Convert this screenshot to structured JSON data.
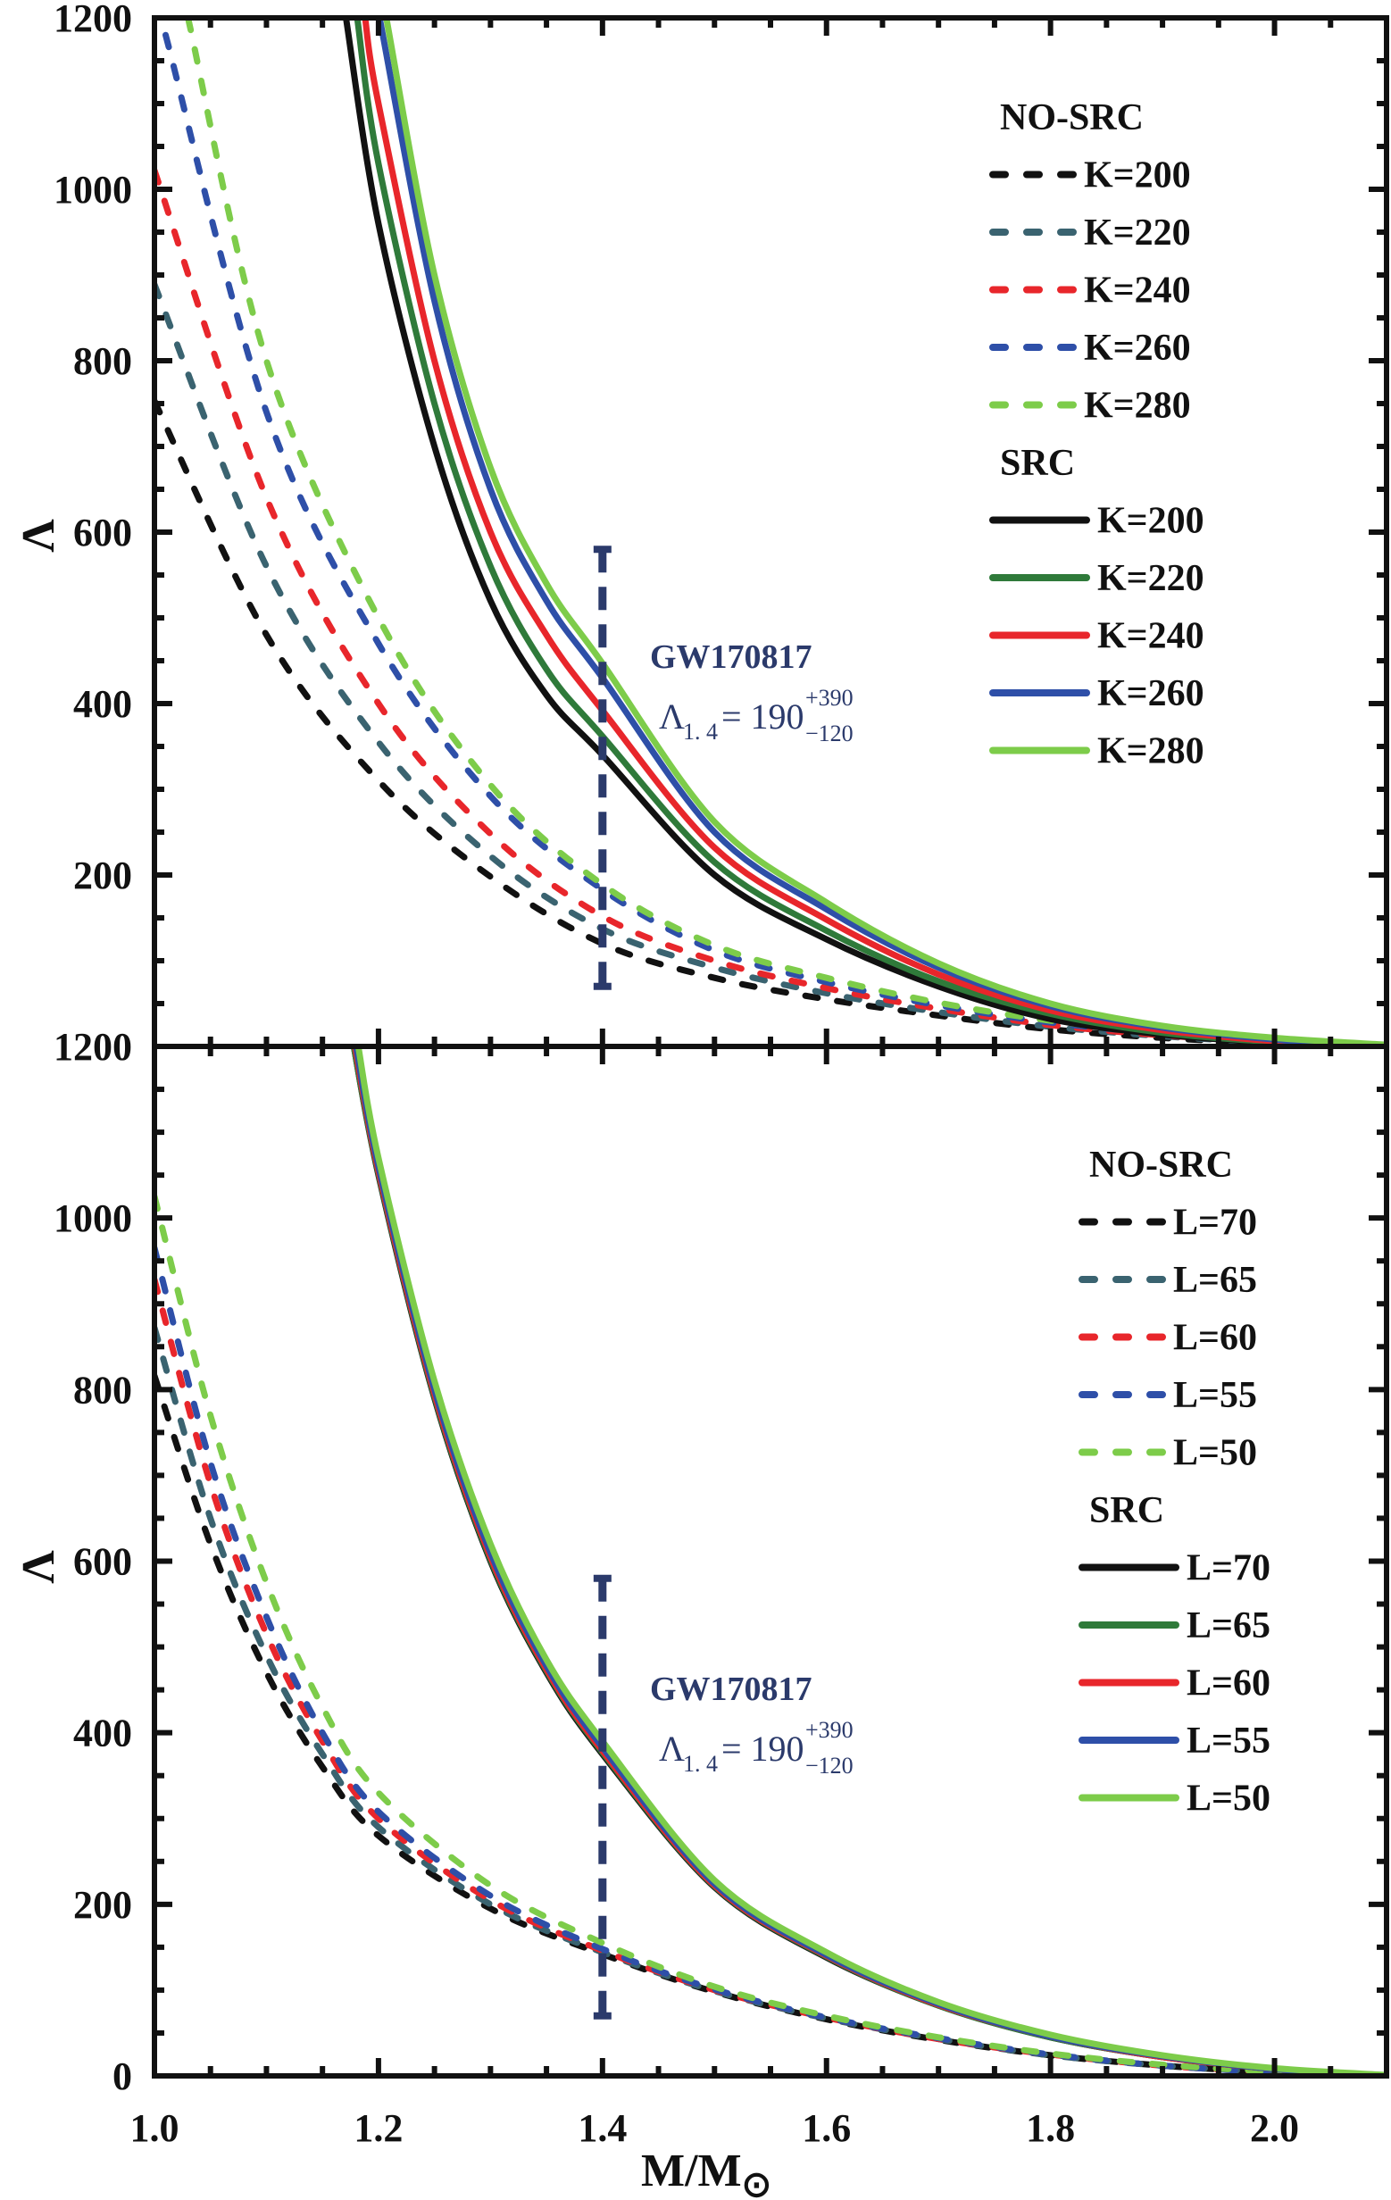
{
  "chart_data": [
    {
      "type": "line",
      "panel": "top",
      "title": "",
      "xlabel": "M/M⊙",
      "ylabel": "Λ",
      "xlim": [
        1.0,
        2.1
      ],
      "ylim": [
        0,
        1200
      ],
      "xticks": [
        1.0,
        1.2,
        1.4,
        1.6,
        1.8,
        2.0
      ],
      "yticks": [
        200,
        400,
        600,
        800,
        1000,
        1200
      ],
      "ytick_labels": [
        "200",
        "400",
        "600",
        "800",
        "1000",
        "1200"
      ],
      "grid": false,
      "legend_placement": "top-right",
      "legend_groups": [
        {
          "title": "NO-SRC",
          "style": "dashed",
          "series_ids": [
            0,
            1,
            2,
            3,
            4
          ]
        },
        {
          "title": "SRC",
          "style": "solid",
          "series_ids": [
            5,
            6,
            7,
            8,
            9
          ]
        }
      ],
      "series": [
        {
          "name": "K=200",
          "group": "NO-SRC",
          "style": "dashed",
          "color": "#111111",
          "x": [
            1.0,
            1.1,
            1.2,
            1.3,
            1.4,
            1.5,
            1.6,
            1.7,
            1.8,
            1.9,
            2.0,
            2.06
          ],
          "y": [
            753,
            480,
            310,
            198,
            120,
            80,
            55,
            36,
            20,
            10,
            3,
            0
          ]
        },
        {
          "name": "K=220",
          "group": "NO-SRC",
          "style": "dashed",
          "color": "#3a6370",
          "x": [
            1.0,
            1.1,
            1.2,
            1.3,
            1.4,
            1.5,
            1.6,
            1.7,
            1.8,
            1.9,
            2.0,
            2.07
          ],
          "y": [
            889,
            560,
            355,
            222,
            137,
            92,
            62,
            40,
            23,
            12,
            4,
            0
          ]
        },
        {
          "name": "K=240",
          "group": "NO-SRC",
          "style": "dashed",
          "color": "#e8262b",
          "x": [
            1.0,
            1.1,
            1.2,
            1.3,
            1.4,
            1.5,
            1.6,
            1.7,
            1.8,
            1.9,
            2.0,
            2.08
          ],
          "y": [
            1022,
            640,
            400,
            248,
            152,
            100,
            68,
            44,
            25,
            13,
            5,
            0
          ]
        },
        {
          "name": "K=260",
          "group": "NO-SRC",
          "style": "dashed",
          "color": "#2e4fa8",
          "x": [
            1.01,
            1.1,
            1.2,
            1.3,
            1.4,
            1.5,
            1.6,
            1.7,
            1.8,
            1.9,
            2.0,
            2.08
          ],
          "y": [
            1180,
            740,
            470,
            292,
            183,
            112,
            75,
            48,
            28,
            15,
            6,
            0
          ]
        },
        {
          "name": "K=280",
          "group": "NO-SRC",
          "style": "dashed",
          "color": "#7dcc4a",
          "x": [
            1.03,
            1.1,
            1.2,
            1.3,
            1.4,
            1.5,
            1.6,
            1.7,
            1.8,
            1.9,
            2.0,
            2.08
          ],
          "y": [
            1200,
            800,
            500,
            305,
            189,
            118,
            80,
            51,
            30,
            16,
            6,
            0
          ]
        },
        {
          "name": "K=200",
          "group": "SRC",
          "style": "solid",
          "color": "#111111",
          "x": [
            1.171,
            1.2,
            1.25,
            1.3,
            1.35,
            1.4,
            1.5,
            1.6,
            1.7,
            1.8,
            1.9,
            2.0,
            2.05
          ],
          "y": [
            1200,
            960,
            700,
            520,
            410,
            340,
            200,
            125,
            70,
            32,
            14,
            4,
            0
          ]
        },
        {
          "name": "K=220",
          "group": "SRC",
          "style": "solid",
          "color": "#2f7a3a",
          "x": [
            1.181,
            1.2,
            1.25,
            1.3,
            1.35,
            1.4,
            1.5,
            1.6,
            1.7,
            1.8,
            1.9,
            2.0,
            2.06
          ],
          "y": [
            1200,
            1030,
            750,
            560,
            440,
            362,
            215,
            135,
            76,
            38,
            16,
            5,
            0
          ]
        },
        {
          "name": "K=240",
          "group": "SRC",
          "style": "solid",
          "color": "#e8262b",
          "x": [
            1.188,
            1.2,
            1.25,
            1.3,
            1.35,
            1.4,
            1.5,
            1.6,
            1.7,
            1.8,
            1.9,
            2.0,
            2.07
          ],
          "y": [
            1200,
            1100,
            800,
            600,
            480,
            392,
            232,
            148,
            84,
            42,
            19,
            6,
            0
          ]
        },
        {
          "name": "K=260",
          "group": "SRC",
          "style": "solid",
          "color": "#2e4fa8",
          "x": [
            1.201,
            1.25,
            1.3,
            1.35,
            1.4,
            1.5,
            1.6,
            1.7,
            1.8,
            1.9,
            2.0,
            2.08
          ],
          "y": [
            1200,
            870,
            650,
            520,
            430,
            250,
            160,
            92,
            47,
            22,
            8,
            0
          ]
        },
        {
          "name": "K=280",
          "group": "SRC",
          "style": "solid",
          "color": "#7dcc4a",
          "x": [
            1.207,
            1.25,
            1.3,
            1.35,
            1.4,
            1.5,
            1.6,
            1.7,
            1.8,
            1.9,
            2.0,
            2.1
          ],
          "y": [
            1200,
            900,
            675,
            540,
            447,
            262,
            168,
            97,
            50,
            24,
            10,
            2
          ]
        }
      ],
      "annotations": {
        "errorbar": {
          "x": 1.4,
          "center": 190,
          "upper": 580,
          "lower": 70,
          "color": "#2b3a6b"
        },
        "label_title": "GW170817",
        "label_symbol": "Λ",
        "label_sub": "1. 4",
        "label_eq": "=  190",
        "label_sup": "+390",
        "label_inf": "−120"
      }
    },
    {
      "type": "line",
      "panel": "bottom",
      "title": "",
      "xlabel": "M/M⊙",
      "ylabel": "Λ",
      "xlim": [
        1.0,
        2.1
      ],
      "ylim": [
        0,
        1200
      ],
      "xticks": [
        1.0,
        1.2,
        1.4,
        1.6,
        1.8,
        2.0
      ],
      "xtick_labels": [
        "1.0",
        "1.2",
        "1.4",
        "1.6",
        "1.8",
        "2.0"
      ],
      "yticks": [
        0,
        200,
        400,
        600,
        800,
        1000,
        1200
      ],
      "ytick_labels": [
        "0",
        "200",
        "400",
        "600",
        "800",
        "1000",
        "1200"
      ],
      "grid": false,
      "legend_placement": "right",
      "legend_groups": [
        {
          "title": "NO-SRC",
          "style": "dashed",
          "series_ids": [
            0,
            1,
            2,
            3,
            4
          ]
        },
        {
          "title": "SRC",
          "style": "solid",
          "series_ids": [
            5,
            6,
            7,
            8,
            9
          ]
        }
      ],
      "series": [
        {
          "name": "L=70",
          "group": "NO-SRC",
          "style": "dashed",
          "color": "#111111",
          "x": [
            1.0,
            1.05,
            1.1,
            1.15,
            1.2,
            1.3,
            1.4,
            1.5,
            1.6,
            1.7,
            1.8,
            1.9,
            2.0,
            2.06
          ],
          "y": [
            816,
            620,
            470,
            360,
            280,
            195,
            142,
            98,
            66,
            42,
            24,
            12,
            4,
            0
          ]
        },
        {
          "name": "L=65",
          "group": "NO-SRC",
          "style": "dashed",
          "color": "#3a6370",
          "x": [
            1.0,
            1.05,
            1.1,
            1.15,
            1.2,
            1.3,
            1.4,
            1.5,
            1.6,
            1.7,
            1.8,
            1.9,
            2.0,
            2.06
          ],
          "y": [
            872,
            650,
            490,
            375,
            290,
            200,
            144,
            99,
            67,
            43,
            24,
            12,
            4,
            0
          ]
        },
        {
          "name": "L=60",
          "group": "NO-SRC",
          "style": "dashed",
          "color": "#e8262b",
          "x": [
            1.0,
            1.05,
            1.1,
            1.15,
            1.2,
            1.3,
            1.4,
            1.5,
            1.6,
            1.7,
            1.8,
            1.9,
            2.0,
            2.07
          ],
          "y": [
            928,
            690,
            515,
            390,
            300,
            205,
            146,
            100,
            68,
            43,
            25,
            12,
            4,
            0
          ]
        },
        {
          "name": "L=55",
          "group": "NO-SRC",
          "style": "dashed",
          "color": "#2e4fa8",
          "x": [
            1.0,
            1.05,
            1.1,
            1.15,
            1.2,
            1.3,
            1.4,
            1.5,
            1.6,
            1.7,
            1.8,
            1.9,
            2.0,
            2.07
          ],
          "y": [
            965,
            715,
            535,
            400,
            308,
            210,
            148,
            101,
            68,
            44,
            25,
            12,
            4,
            0
          ]
        },
        {
          "name": "L=50",
          "group": "NO-SRC",
          "style": "dashed",
          "color": "#7dcc4a",
          "x": [
            1.0,
            1.05,
            1.1,
            1.15,
            1.2,
            1.3,
            1.4,
            1.5,
            1.6,
            1.7,
            1.8,
            1.9,
            2.0,
            2.08
          ],
          "y": [
            1025,
            770,
            575,
            430,
            330,
            222,
            155,
            104,
            70,
            45,
            26,
            13,
            5,
            0
          ]
        },
        {
          "name": "L=70",
          "group": "SRC",
          "style": "solid",
          "color": "#111111",
          "x": [
            1.178,
            1.2,
            1.25,
            1.3,
            1.35,
            1.4,
            1.5,
            1.6,
            1.7,
            1.8,
            1.9,
            2.0,
            2.08
          ],
          "y": [
            1200,
            1050,
            790,
            600,
            470,
            375,
            220,
            138,
            82,
            45,
            22,
            8,
            0
          ]
        },
        {
          "name": "L=65",
          "group": "SRC",
          "style": "solid",
          "color": "#2f7a3a",
          "x": [
            1.178,
            1.2,
            1.25,
            1.3,
            1.35,
            1.4,
            1.5,
            1.6,
            1.7,
            1.8,
            1.9,
            2.0,
            2.08
          ],
          "y": [
            1200,
            1052,
            792,
            602,
            472,
            377,
            221,
            139,
            82,
            45,
            22,
            8,
            0
          ]
        },
        {
          "name": "L=60",
          "group": "SRC",
          "style": "solid",
          "color": "#e8262b",
          "x": [
            1.179,
            1.2,
            1.25,
            1.3,
            1.35,
            1.4,
            1.5,
            1.6,
            1.7,
            1.8,
            1.9,
            2.0,
            2.08
          ],
          "y": [
            1200,
            1055,
            795,
            605,
            474,
            379,
            222,
            140,
            83,
            46,
            22,
            8,
            0
          ]
        },
        {
          "name": "L=55",
          "group": "SRC",
          "style": "solid",
          "color": "#2e4fa8",
          "x": [
            1.18,
            1.2,
            1.25,
            1.3,
            1.35,
            1.4,
            1.5,
            1.6,
            1.7,
            1.8,
            1.9,
            2.0,
            2.09
          ],
          "y": [
            1200,
            1060,
            800,
            610,
            478,
            383,
            224,
            141,
            84,
            46,
            23,
            8,
            0
          ]
        },
        {
          "name": "L=50",
          "group": "SRC",
          "style": "solid",
          "color": "#7dcc4a",
          "x": [
            1.182,
            1.2,
            1.25,
            1.3,
            1.35,
            1.4,
            1.5,
            1.6,
            1.7,
            1.8,
            1.9,
            2.0,
            2.1
          ],
          "y": [
            1200,
            1070,
            810,
            620,
            485,
            390,
            228,
            144,
            86,
            48,
            24,
            9,
            1
          ]
        }
      ],
      "annotations": {
        "errorbar": {
          "x": 1.4,
          "center": 190,
          "upper": 580,
          "lower": 70,
          "color": "#2b3a6b"
        },
        "label_title": "GW170817",
        "label_symbol": "Λ",
        "label_sub": "1. 4",
        "label_eq": "=  190",
        "label_sup": "+390",
        "label_inf": "−120"
      }
    }
  ],
  "axis": {
    "xlabel_main": "M/M",
    "xlabel_sub": "⊙",
    "ylabel": "Λ"
  }
}
